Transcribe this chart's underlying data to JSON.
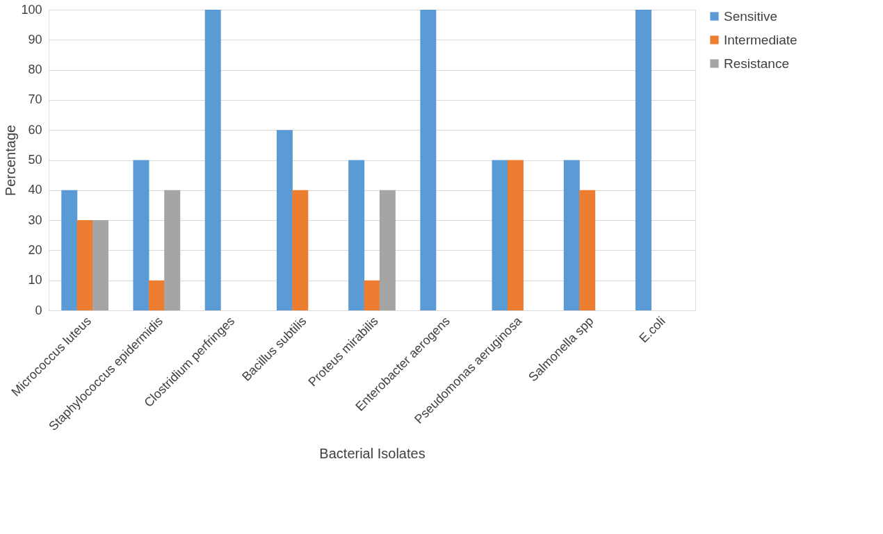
{
  "chart_data": {
    "type": "bar",
    "xlabel": "Bacterial Isolates",
    "ylabel": "Percentage",
    "categories": [
      "Micrococcus luteus",
      "Staphylococcus epidermidis",
      "Clostridium perfringes",
      "Bacillus subtilis",
      "Proteus mirabilis",
      "Enterobacter aerogens",
      "Pseudomonas aeruginosa",
      "Salmonella spp",
      "E.coli"
    ],
    "series": [
      {
        "name": "Sensitive",
        "color": "#5b9bd5",
        "values": [
          40,
          50,
          100,
          60,
          50,
          100,
          50,
          50,
          100
        ]
      },
      {
        "name": "Intermediate",
        "color": "#ed7d31",
        "values": [
          30,
          10,
          0,
          40,
          10,
          0,
          50,
          40,
          0
        ]
      },
      {
        "name": "Resistance",
        "color": "#a5a5a5",
        "values": [
          30,
          40,
          0,
          0,
          40,
          0,
          0,
          0,
          0
        ]
      }
    ],
    "ylim": [
      0,
      100
    ],
    "yticks": [
      0,
      10,
      20,
      30,
      40,
      50,
      60,
      70,
      80,
      90,
      100
    ],
    "grid": "y",
    "legend": "right"
  }
}
